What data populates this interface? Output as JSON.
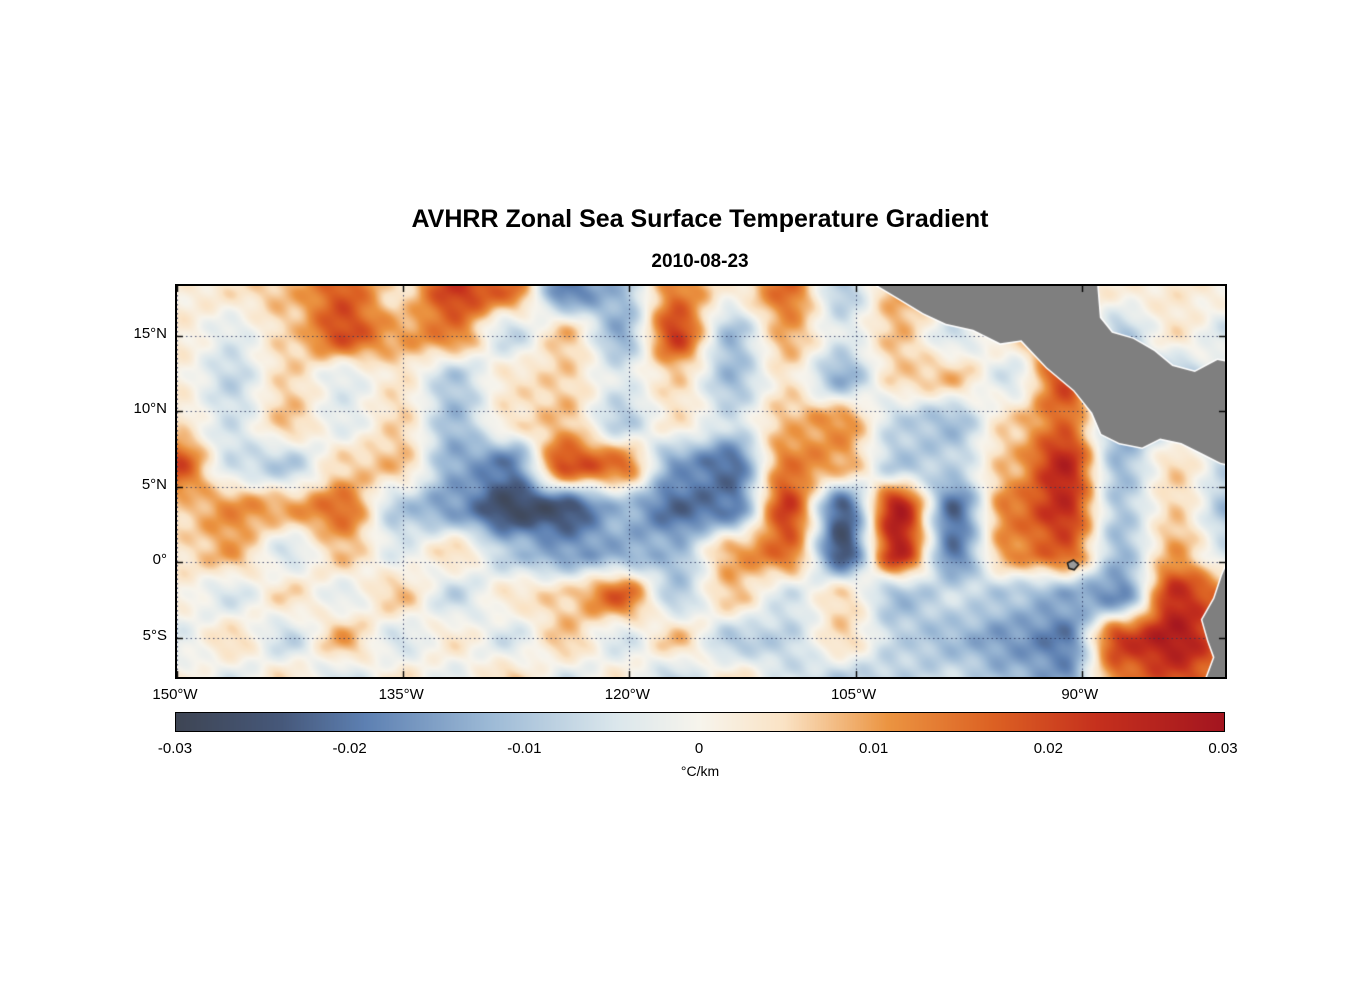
{
  "chart_data": {
    "type": "heatmap",
    "title": "AVHRR Zonal Sea Surface Temperature Gradient",
    "subtitle": "2010-08-23",
    "units": "°C/km",
    "lon_range": [
      -150,
      -80.5
    ],
    "lat_range": [
      18.3,
      -7.6
    ],
    "x_axis": {
      "ticks": [
        {
          "lon": -150,
          "label": "150°W"
        },
        {
          "lon": -135,
          "label": "135°W"
        },
        {
          "lon": -120,
          "label": "120°W"
        },
        {
          "lon": -105,
          "label": "105°W"
        },
        {
          "lon": -90,
          "label": "90°W"
        }
      ]
    },
    "y_axis": {
      "ticks": [
        {
          "lat": 15,
          "label": "15°N"
        },
        {
          "lat": 10,
          "label": "10°N"
        },
        {
          "lat": 5,
          "label": "5°N"
        },
        {
          "lat": 0,
          "label": "0°"
        },
        {
          "lat": -5,
          "label": "5°S"
        }
      ]
    },
    "colorbar": {
      "min": -0.03,
      "max": 0.03,
      "ticks": [
        -0.03,
        -0.02,
        -0.01,
        0,
        0.01,
        0.02,
        0.03
      ],
      "tick_labels": [
        "-0.03",
        "-0.02",
        "-0.01",
        "0",
        "0.01",
        "0.02",
        "0.03"
      ],
      "colormap": [
        {
          "pos": 0.0,
          "color": "#3e4554"
        },
        {
          "pos": 0.1,
          "color": "#46587a"
        },
        {
          "pos": 0.18,
          "color": "#5d80b2"
        },
        {
          "pos": 0.3,
          "color": "#9dbad6"
        },
        {
          "pos": 0.42,
          "color": "#dbe7ec"
        },
        {
          "pos": 0.5,
          "color": "#f7f4ec"
        },
        {
          "pos": 0.58,
          "color": "#fae3c5"
        },
        {
          "pos": 0.68,
          "color": "#eb9441"
        },
        {
          "pos": 0.78,
          "color": "#dc6123"
        },
        {
          "pos": 0.88,
          "color": "#c5301d"
        },
        {
          "pos": 1.0,
          "color": "#a3151f"
        }
      ]
    },
    "grid": {
      "lats": [
        18,
        15.11,
        12.22,
        9.33,
        6.44,
        3.56,
        0.67,
        -2.22,
        -5.11,
        -8
      ],
      "lons": [
        -150,
        -146.32,
        -142.63,
        -138.95,
        -135.26,
        -131.58,
        -127.89,
        -124.21,
        -120.53,
        -116.84,
        -113.16,
        -109.47,
        -105.79,
        -102.11,
        -98.42,
        -94.74,
        -91.05,
        -87.37,
        -83.68,
        -80
      ],
      "values": [
        [
          0.002,
          0.004,
          0.008,
          0.018,
          0.004,
          0.022,
          0.016,
          -0.02,
          -0.012,
          0.014,
          0.002,
          0.016,
          -0.01,
          0.01,
          0.004,
          0.002,
          0.004,
          0.002,
          0.003,
          0.002
        ],
        [
          0.003,
          -0.004,
          0.006,
          0.02,
          0.01,
          0.014,
          -0.008,
          0.008,
          -0.014,
          0.022,
          -0.012,
          0.01,
          -0.004,
          0.008,
          -0.006,
          0.004,
          0.018,
          -0.01,
          0.004,
          -0.006
        ],
        [
          0.002,
          -0.008,
          0.006,
          -0.004,
          0.004,
          -0.01,
          0.004,
          0.006,
          -0.004,
          0.006,
          -0.012,
          0.004,
          -0.014,
          0.006,
          0.008,
          -0.006,
          0.02,
          -0.008,
          -0.012,
          0.004
        ],
        [
          0.004,
          -0.006,
          0.008,
          -0.004,
          0.006,
          -0.012,
          0.004,
          0.008,
          -0.01,
          0.004,
          -0.006,
          0.008,
          0.012,
          -0.008,
          -0.012,
          0.006,
          0.016,
          -0.014,
          -0.008,
          0.004
        ],
        [
          0.02,
          -0.006,
          -0.01,
          0.006,
          0.008,
          -0.014,
          -0.02,
          0.02,
          0.016,
          -0.016,
          -0.022,
          0.014,
          0.01,
          -0.01,
          -0.008,
          0.008,
          0.026,
          -0.012,
          0.006,
          -0.008
        ],
        [
          0.006,
          0.012,
          0.01,
          0.016,
          -0.01,
          -0.016,
          -0.028,
          -0.026,
          -0.012,
          -0.022,
          -0.02,
          0.022,
          -0.024,
          0.028,
          -0.022,
          0.014,
          0.024,
          -0.01,
          0.006,
          -0.012
        ],
        [
          0.004,
          0.01,
          -0.006,
          0.008,
          -0.004,
          0.006,
          -0.01,
          -0.016,
          -0.014,
          -0.012,
          0.01,
          0.016,
          -0.026,
          0.026,
          -0.02,
          0.012,
          0.018,
          -0.012,
          0.01,
          -0.006
        ],
        [
          0.002,
          -0.006,
          0.006,
          -0.004,
          0.008,
          -0.008,
          0.004,
          0.006,
          0.018,
          -0.01,
          0.008,
          -0.006,
          0.006,
          -0.012,
          -0.006,
          -0.01,
          -0.014,
          -0.018,
          0.024,
          0.014
        ],
        [
          -0.004,
          0.006,
          -0.008,
          0.01,
          -0.006,
          0.004,
          -0.006,
          0.008,
          -0.006,
          0.008,
          -0.01,
          -0.008,
          0.006,
          -0.008,
          -0.012,
          -0.016,
          -0.02,
          0.022,
          0.028,
          0.016
        ],
        [
          0.003,
          -0.005,
          0.006,
          -0.008,
          0.005,
          -0.004,
          0.008,
          -0.006,
          0.004,
          -0.01,
          0.006,
          -0.005,
          -0.01,
          -0.008,
          -0.006,
          -0.012,
          -0.016,
          0.014,
          0.02,
          0.012
        ]
      ]
    },
    "land": {
      "color": "#7f7f7f",
      "coast_color": "#ffffff",
      "polygons": [
        {
          "name": "central-america",
          "points": [
            [
              -104.0,
              18.6
            ],
            [
              -100.5,
              16.5
            ],
            [
              -99.0,
              15.8
            ],
            [
              -97.2,
              15.4
            ],
            [
              -95.4,
              14.5
            ],
            [
              -94.0,
              14.7
            ],
            [
              -92.3,
              12.9
            ],
            [
              -90.5,
              11.4
            ],
            [
              -89.3,
              9.9
            ],
            [
              -88.7,
              8.5
            ],
            [
              -87.5,
              7.9
            ],
            [
              -86.0,
              7.6
            ],
            [
              -84.8,
              8.2
            ],
            [
              -83.4,
              7.9
            ],
            [
              -82.0,
              7.2
            ],
            [
              -80.8,
              6.6
            ],
            [
              -79.0,
              6.2
            ],
            [
              -79.0,
              13.0
            ],
            [
              -81.0,
              13.4
            ],
            [
              -82.5,
              12.6
            ],
            [
              -84.0,
              13.0
            ],
            [
              -85.2,
              14.0
            ],
            [
              -86.6,
              14.8
            ],
            [
              -88.0,
              15.2
            ],
            [
              -88.8,
              16.2
            ],
            [
              -89.0,
              18.6
            ]
          ]
        },
        {
          "name": "south-america",
          "points": [
            [
              -79.0,
              0.8
            ],
            [
              -80.2,
              0.3
            ],
            [
              -80.7,
              -0.9
            ],
            [
              -81.2,
              -2.4
            ],
            [
              -82.0,
              -3.8
            ],
            [
              -81.6,
              -5.2
            ],
            [
              -81.2,
              -6.3
            ],
            [
              -81.8,
              -7.9
            ],
            [
              -79.0,
              -7.9
            ]
          ]
        }
      ],
      "islands": [
        {
          "name": "galapagos",
          "points": [
            [
              -90.95,
              -0.05
            ],
            [
              -90.55,
              0.15
            ],
            [
              -90.2,
              -0.15
            ],
            [
              -90.5,
              -0.5
            ],
            [
              -90.85,
              -0.4
            ]
          ]
        }
      ]
    },
    "grid_lines": {
      "style": "dotted",
      "color": "rgba(45,55,95,0.85)"
    }
  }
}
